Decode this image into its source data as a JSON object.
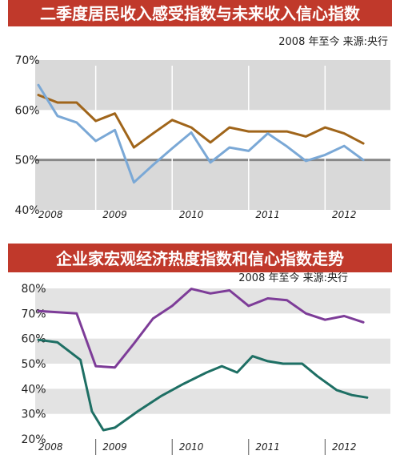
{
  "chart_data": [
    {
      "type": "line",
      "title": "二季度居民收入感受指数与未来收入信心指数",
      "subtitle": "2008 年至今    来源:央行",
      "colors": {
        "title_bg": "#c0392b",
        "band": "#d9d9d9"
      },
      "y_ticks": [
        "70%",
        "60%",
        "50%",
        "40%"
      ],
      "y_tick_values": [
        70,
        60,
        50,
        40
      ],
      "ylim": [
        40,
        70
      ],
      "reference_line": 50,
      "x_ticks": [
        "2008",
        "2009",
        "2010",
        "2011",
        "2012"
      ],
      "x_tick_values": [
        2008.0,
        2009.0,
        2010.0,
        2011.0,
        2012.0
      ],
      "x_divider_years": [
        2008.75,
        2009.75,
        2010.75,
        2011.75
      ],
      "xlim": [
        2008.0,
        2012.5
      ],
      "series": [
        {
          "color": "#a0651a",
          "x": [
            2008.0,
            2008.25,
            2008.5,
            2008.75,
            2009.0,
            2009.25,
            2009.5,
            2009.75,
            2010.0,
            2010.25,
            2010.5,
            2010.75,
            2011.0,
            2011.25,
            2011.5,
            2011.75,
            2012.0,
            2012.25
          ],
          "y": [
            63,
            61.5,
            61.5,
            57.8,
            59.3,
            52.5,
            55.3,
            58,
            56.5,
            53.5,
            56.5,
            55.7,
            55.7,
            55.7,
            54.7,
            56.5,
            55.3,
            53.3
          ]
        },
        {
          "color": "#7aa8d6",
          "x": [
            2008.0,
            2008.25,
            2008.5,
            2008.75,
            2009.0,
            2009.25,
            2009.5,
            2009.75,
            2010.0,
            2010.25,
            2010.5,
            2010.75,
            2011.0,
            2011.25,
            2011.5,
            2011.75,
            2012.0,
            2012.25
          ],
          "y": [
            65,
            58.8,
            57.5,
            53.8,
            56,
            45.5,
            49,
            52.3,
            55.5,
            49.5,
            52.5,
            51.8,
            55.3,
            52.7,
            49.8,
            51,
            52.8,
            50
          ]
        }
      ]
    },
    {
      "type": "line",
      "title": "企业家宏观经济热度指数和信心指数走势",
      "subtitle": "2008 年至今    来源:央行",
      "colors": {
        "title_bg": "#c0392b",
        "band": "#e3e3e3"
      },
      "y_ticks": [
        "80%",
        "70%",
        "60%",
        "50%",
        "40%",
        "30%",
        "20%"
      ],
      "y_tick_values": [
        80,
        70,
        60,
        50,
        40,
        30,
        20
      ],
      "ylim": [
        20,
        80
      ],
      "x_ticks": [
        "2008",
        "2009",
        "2010",
        "2011",
        "2012"
      ],
      "x_tick_values": [
        2008.0,
        2009.0,
        2010.0,
        2011.0,
        2012.0
      ],
      "x_divider_years": [
        2008.75,
        2009.75,
        2010.75,
        2011.75
      ],
      "xlim": [
        2008.0,
        2012.5
      ],
      "series": [
        {
          "color": "#7d3c98",
          "x": [
            2008.0,
            2008.25,
            2008.5,
            2008.75,
            2009.0,
            2009.25,
            2009.5,
            2009.75,
            2010.0,
            2010.25,
            2010.5,
            2010.75,
            2011.0,
            2011.25,
            2011.5,
            2011.75,
            2012.0,
            2012.25
          ],
          "y": [
            71,
            70.5,
            70,
            49,
            48.5,
            58,
            68,
            73,
            79.8,
            78,
            79.2,
            73,
            76,
            75.3,
            70,
            67.5,
            69,
            66.5
          ]
        },
        {
          "color": "#1e6f64",
          "x": [
            2008.0,
            2008.25,
            2008.4,
            2008.55,
            2008.7,
            2008.85,
            2009.0,
            2009.3,
            2009.6,
            2009.9,
            2010.2,
            2010.4,
            2010.6,
            2010.8,
            2011.0,
            2011.2,
            2011.45,
            2011.65,
            2011.9,
            2012.1,
            2012.3
          ],
          "y": [
            59.5,
            58.5,
            55,
            51.5,
            31,
            23.5,
            24.5,
            31,
            37,
            42,
            46.5,
            49,
            46.5,
            53,
            51,
            50,
            50,
            45,
            39.5,
            37.5,
            36.5
          ]
        }
      ]
    }
  ]
}
